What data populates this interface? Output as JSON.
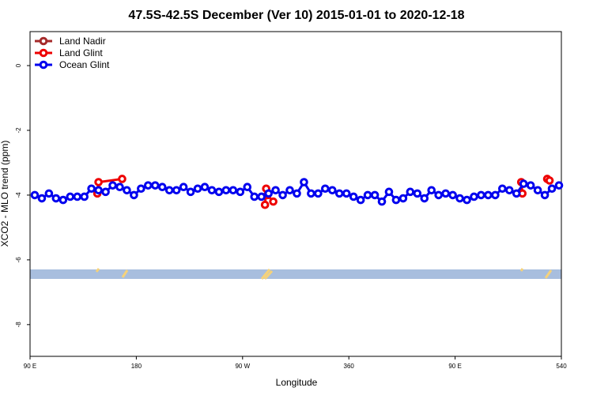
{
  "chart_data": {
    "type": "line",
    "title": "47.5S-42.5S December (Ver 10)   2015-01-01 to 2020-12-18",
    "x_label": "Longitude",
    "y_label": "XCO2 - MLO trend (ppm)",
    "xlim": [
      90,
      540
    ],
    "ylim": [
      -8.98,
      1.05
    ],
    "xticks": [
      {
        "value": 90,
        "label": "90 E"
      },
      180,
      {
        "value": 270,
        "label": "90 W"
      },
      360,
      {
        "value": 450,
        "label": "90 E"
      },
      540
    ],
    "yticks": [
      0,
      -2,
      -4,
      -6,
      -8
    ],
    "legend": "top-left",
    "series": [
      {
        "name": "Land Nadir",
        "color": "#a52a2a",
        "x": [],
        "values": []
      },
      {
        "name": "Land Glint",
        "color": "#ee0000",
        "x": [
          147,
          148,
          168,
          200,
          289,
          290,
          291,
          296,
          400,
          506,
          507,
          520,
          528,
          530
        ],
        "values": [
          -3.95,
          -3.6,
          -3.5,
          null,
          -4.3,
          -3.8,
          -4.0,
          -4.2,
          null,
          -3.6,
          -3.95,
          null,
          -3.5,
          -3.55
        ]
      },
      {
        "name": "Ocean Glint",
        "color": "#0000ee",
        "x": [
          94,
          100,
          106,
          112,
          118,
          124,
          130,
          136,
          142,
          148,
          154,
          160,
          166,
          172,
          178,
          184,
          190,
          196,
          202,
          208,
          214,
          220,
          226,
          232,
          238,
          244,
          250,
          256,
          262,
          268,
          274,
          280,
          286,
          292,
          298,
          304,
          310,
          316,
          322,
          328,
          334,
          340,
          346,
          352,
          358,
          364,
          370,
          376,
          382,
          388,
          394,
          400,
          406,
          412,
          418,
          424,
          430,
          436,
          442,
          448,
          454,
          460,
          466,
          472,
          478,
          484,
          490,
          496,
          502,
          508,
          514,
          520,
          526,
          532,
          538
        ],
        "values": [
          -4.0,
          -4.1,
          -3.95,
          -4.1,
          -4.15,
          -4.05,
          -4.05,
          -4.05,
          -3.8,
          -3.85,
          -3.9,
          -3.7,
          -3.75,
          -3.85,
          -4.0,
          -3.8,
          -3.7,
          -3.7,
          -3.75,
          -3.85,
          -3.85,
          -3.75,
          -3.9,
          -3.8,
          -3.75,
          -3.85,
          -3.9,
          -3.85,
          -3.85,
          -3.9,
          -3.75,
          -4.05,
          -4.05,
          -3.95,
          -3.85,
          -4.0,
          -3.85,
          -3.95,
          -3.6,
          -3.95,
          -3.95,
          -3.8,
          -3.85,
          -3.95,
          -3.95,
          -4.05,
          -4.15,
          -4.0,
          -4.0,
          -4.2,
          -3.9,
          -4.15,
          -4.1,
          -3.9,
          -3.95,
          -4.1,
          -3.85,
          -4.0,
          -3.95,
          -4.0,
          -4.1,
          -4.15,
          -4.05,
          -4.0,
          -4.0,
          -4.0,
          -3.8,
          -3.85,
          -3.95,
          -3.65,
          -3.7,
          -3.85,
          -4.0,
          -3.8,
          -3.7
        ]
      }
    ]
  }
}
